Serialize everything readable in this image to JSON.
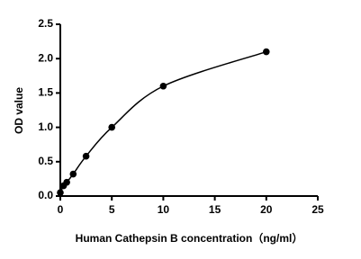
{
  "chart_data": {
    "type": "scatter",
    "xlabel": "Human Cathepsin B concentration（ng/ml）",
    "ylabel": "OD value",
    "series": [
      {
        "color": "#000000",
        "x": [
          0,
          0.3125,
          0.625,
          1.25,
          2.5,
          5,
          10,
          20
        ],
        "values": [
          0.05,
          0.15,
          0.2,
          0.32,
          0.58,
          1.0,
          1.6,
          2.1
        ]
      }
    ],
    "xlim": [
      0,
      25
    ],
    "xticks": [
      0,
      5,
      10,
      15,
      20,
      25
    ],
    "ylim": [
      0,
      2.5
    ],
    "yticks": [
      {
        "value": 0,
        "label": "0.0"
      },
      0.5,
      {
        "value": 1,
        "label": "1.0"
      },
      1.5,
      {
        "value": 2,
        "label": "2.0"
      },
      2.5
    ],
    "fit_line": true
  }
}
